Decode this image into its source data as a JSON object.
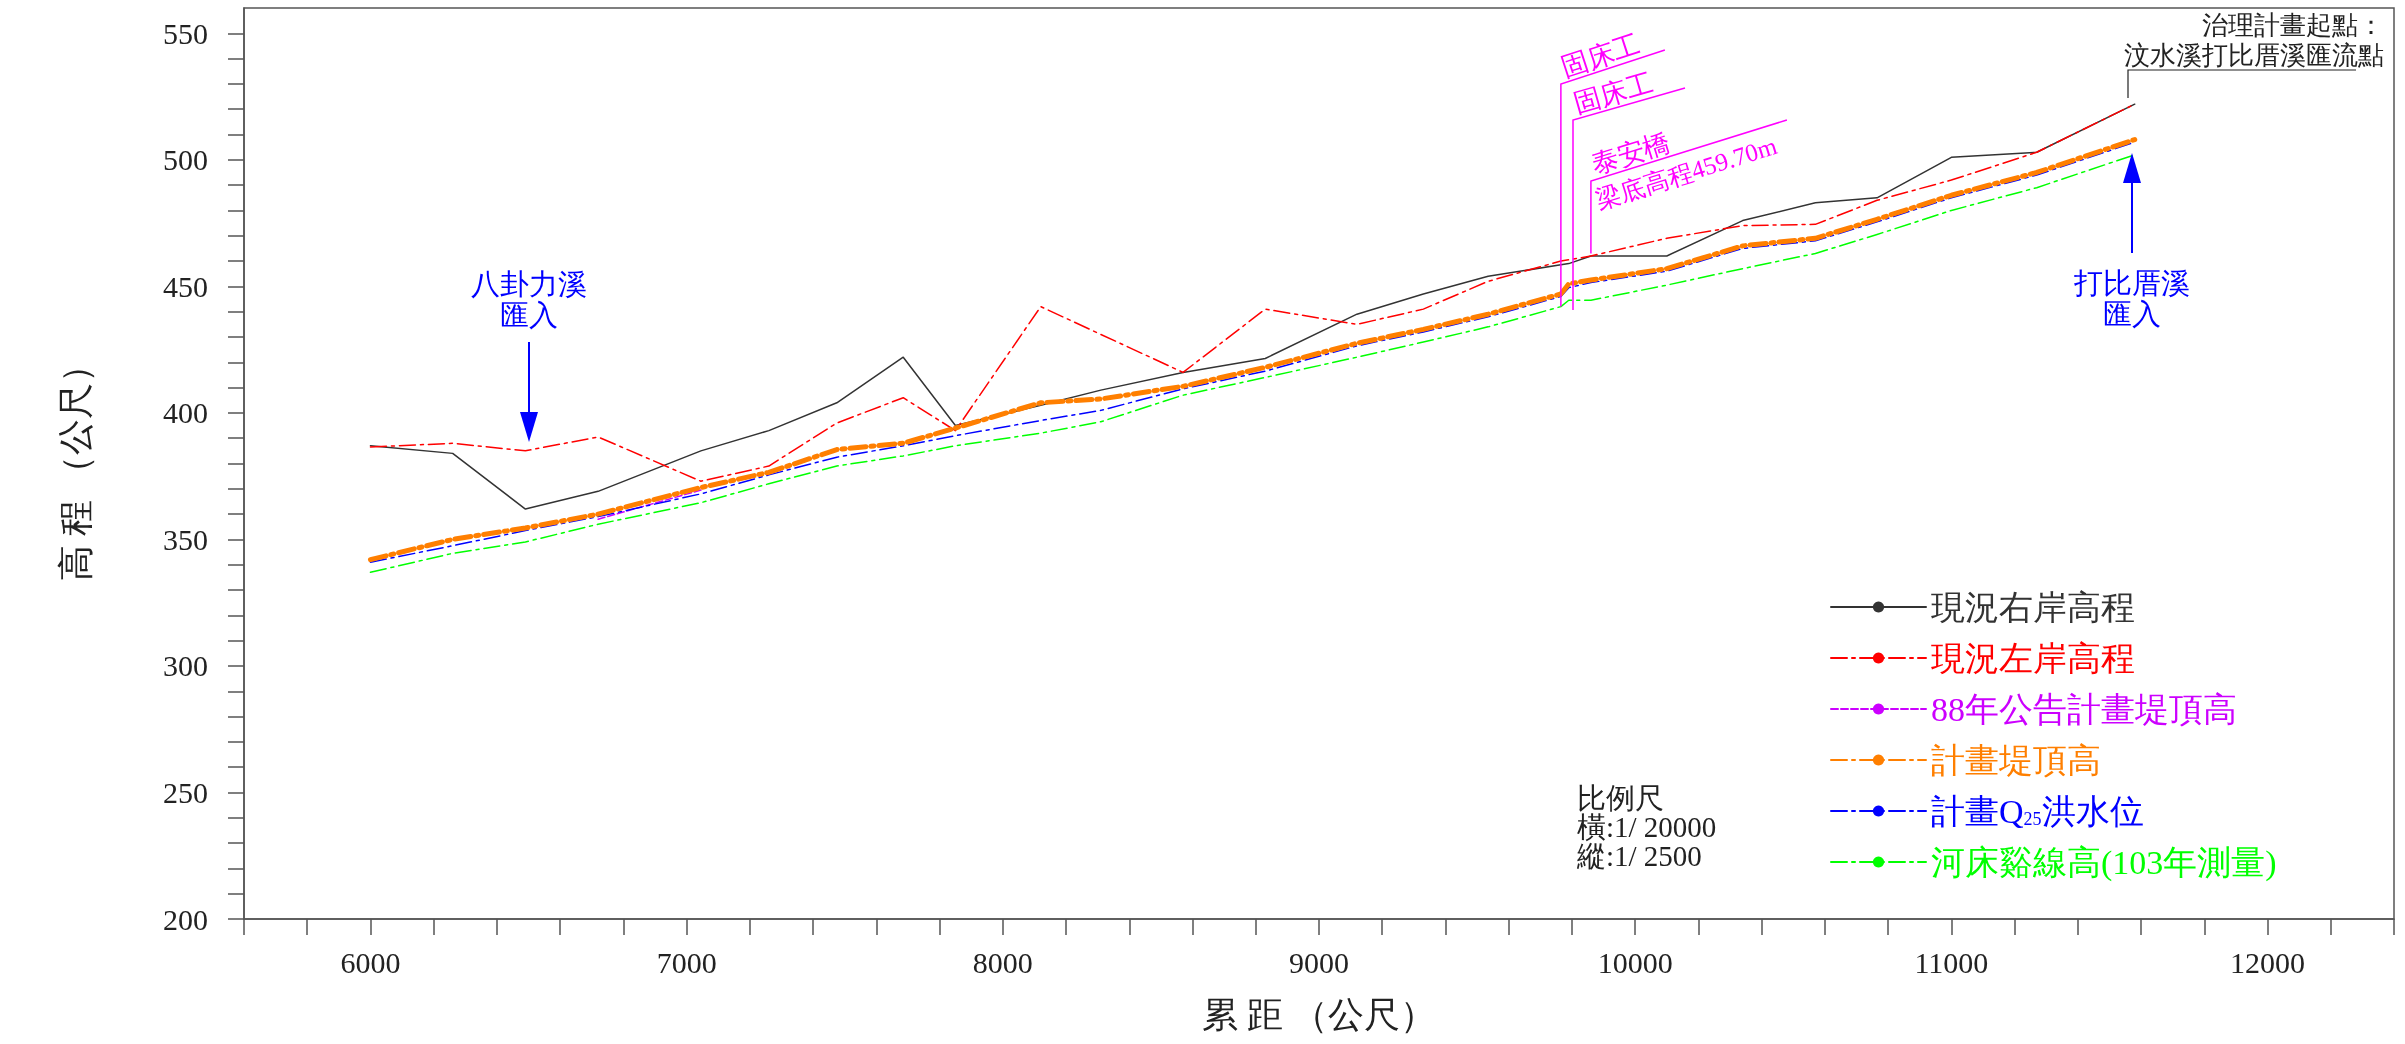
{
  "chart_data": {
    "type": "line",
    "xlabel": "累 距 （公尺）",
    "ylabel": "高 程 （公尺）",
    "xlim": [
      5600,
      12400
    ],
    "xticks": [
      {
        "value": 5600,
        "label": null
      },
      {
        "value": 5800,
        "label": null
      },
      6000,
      {
        "value": 6200,
        "label": null
      },
      {
        "value": 6400,
        "label": null
      },
      {
        "value": 6600,
        "label": null
      },
      {
        "value": 6800,
        "label": null
      },
      7000,
      {
        "value": 7200,
        "label": null
      },
      {
        "value": 7400,
        "label": null
      },
      {
        "value": 7600,
        "label": null
      },
      {
        "value": 7800,
        "label": null
      },
      8000,
      {
        "value": 8200,
        "label": null
      },
      {
        "value": 8400,
        "label": null
      },
      {
        "value": 8600,
        "label": null
      },
      {
        "value": 8800,
        "label": null
      },
      9000,
      {
        "value": 9200,
        "label": null
      },
      {
        "value": 9400,
        "label": null
      },
      {
        "value": 9600,
        "label": null
      },
      {
        "value": 9800,
        "label": null
      },
      10000,
      {
        "value": 10200,
        "label": null
      },
      {
        "value": 10400,
        "label": null
      },
      {
        "value": 10600,
        "label": null
      },
      {
        "value": 10800,
        "label": null
      },
      11000,
      {
        "value": 11200,
        "label": null
      },
      {
        "value": 11400,
        "label": null
      },
      {
        "value": 11600,
        "label": null
      },
      {
        "value": 11800,
        "label": null
      },
      12000,
      {
        "value": 12200,
        "label": null
      },
      {
        "value": 12400,
        "label": null
      }
    ],
    "ylim": [
      200,
      560
    ],
    "yticks": [
      200,
      {
        "value": 210,
        "label": null
      },
      {
        "value": 220,
        "label": null
      },
      {
        "value": 230,
        "label": null
      },
      {
        "value": 240,
        "label": null
      },
      250,
      {
        "value": 260,
        "label": null
      },
      {
        "value": 270,
        "label": null
      },
      {
        "value": 280,
        "label": null
      },
      {
        "value": 290,
        "label": null
      },
      300,
      {
        "value": 310,
        "label": null
      },
      {
        "value": 320,
        "label": null
      },
      {
        "value": 330,
        "label": null
      },
      {
        "value": 340,
        "label": null
      },
      350,
      {
        "value": 360,
        "label": null
      },
      {
        "value": 370,
        "label": null
      },
      {
        "value": 380,
        "label": null
      },
      {
        "value": 390,
        "label": null
      },
      400,
      {
        "value": 410,
        "label": null
      },
      {
        "value": 420,
        "label": null
      },
      {
        "value": 430,
        "label": null
      },
      {
        "value": 440,
        "label": null
      },
      450,
      {
        "value": 460,
        "label": null
      },
      {
        "value": 470,
        "label": null
      },
      {
        "value": 480,
        "label": null
      },
      {
        "value": 490,
        "label": null
      },
      500,
      {
        "value": 510,
        "label": null
      },
      {
        "value": 520,
        "label": null
      },
      {
        "value": 530,
        "label": null
      },
      {
        "value": 540,
        "label": null
      },
      550
    ],
    "grid": false,
    "legend": "bottom right",
    "marker": "none",
    "x": [
      6000,
      6260,
      6490,
      6720,
      7045,
      7260,
      7475,
      7685,
      7850,
      8120,
      8310,
      8570,
      8830,
      9120,
      9330,
      9535,
      9765,
      9790,
      9860,
      10100,
      10340,
      10570,
      10765,
      11000,
      11270,
      11580
    ],
    "series": [
      {
        "name": "現況右岸高程",
        "color": "#333333",
        "line_style": "solid",
        "values": [
          387,
          384,
          362,
          369,
          385,
          393,
          404,
          422,
          395,
          403,
          409,
          416,
          421.5,
          439,
          447,
          454,
          458.5,
          459,
          462,
          462,
          476,
          483,
          485,
          501,
          503,
          522
        ]
      },
      {
        "name": "現況左岸高程",
        "color": "#ff0000",
        "line_style": "dashed",
        "values": [
          386.5,
          388,
          385,
          390.5,
          373,
          379,
          396,
          406,
          393,
          442,
          431,
          416,
          441,
          435,
          441,
          452,
          460,
          460.5,
          462,
          469,
          474,
          474.5,
          484,
          492,
          503,
          522
        ]
      },
      {
        "name": "88年公告計畫堤頂高",
        "color": "#cc00ff",
        "line_style": "dashed",
        "values": [
          null,
          null,
          null,
          358,
          369.5,
          null,
          null,
          null,
          null,
          null,
          null,
          null,
          null,
          null,
          null,
          null,
          null,
          null,
          null,
          null,
          null,
          null,
          null,
          null,
          null,
          null
        ]
      },
      {
        "name": "計畫堤頂高",
        "color": "#ff7f00",
        "line_style": "dashed",
        "values": [
          342,
          350,
          354.5,
          360,
          370.5,
          376.5,
          385.5,
          388,
          394,
          404,
          405.5,
          410.5,
          418,
          427.5,
          433,
          439,
          447,
          451,
          452.5,
          457,
          466,
          469,
          476.5,
          486,
          495,
          508
        ]
      },
      {
        "name": "計畫Q$_{25}$洪水位",
        "color": "#0000ff",
        "line_style": "dashed",
        "values": [
          341,
          347.5,
          353.5,
          359,
          368,
          375.5,
          382.5,
          387,
          391,
          397,
          401,
          409.5,
          416.5,
          426.5,
          432,
          438,
          446,
          449.5,
          451.5,
          456,
          465,
          468,
          475.5,
          485,
          494,
          507
        ]
      },
      {
        "name": "河床谿線高(103年測量)",
        "color": "#00ff00",
        "line_style": "dashed",
        "values": [
          337,
          344.5,
          349,
          356,
          364.5,
          372,
          379,
          383,
          387,
          392,
          396.5,
          407,
          414,
          422,
          428,
          434,
          442,
          444.5,
          444.5,
          450.5,
          457,
          463,
          470.5,
          480,
          489,
          502
        ]
      }
    ],
    "annotations": [
      "八卦力溪匯入",
      "打比厝溪匯入",
      {
        "text": "固床工",
        "x": 9765,
        "y": 442
      },
      "固床工",
      {
        "text": "泰安橋梁底高程459.70m",
        "x": 9860,
        "y": 463
      },
      "治理計畫起點：汶水溪打比厝溪匯流點",
      "比例尺橫:1/ 20000縱:1/ 2500"
    ]
  }
}
